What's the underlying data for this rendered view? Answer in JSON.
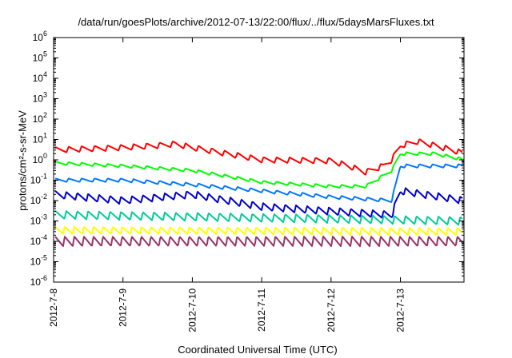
{
  "chart_data": {
    "type": "line",
    "title": "/data/run/goesPlots/archive/2012-07-13/22:00/flux/../flux/5daysMarsFluxes.txt",
    "xlabel": "Coordinated Universal Time (UTC)",
    "ylabel": "protons/cm²-s-sr-MeV",
    "y_scale": "log",
    "ylim": [
      1e-06,
      1000000.0
    ],
    "y_ticks": [
      "10-6",
      "10-5",
      "10-4",
      "10-3",
      "10-2",
      "10-1",
      "100",
      "101",
      "102",
      "103",
      "104",
      "105",
      "106"
    ],
    "xlim": [
      "2012-07-08",
      "2012-07-13T22:00"
    ],
    "x_ticks": [
      "2012-7-8",
      "2012-7-9",
      "2012-7-10",
      "2012-7-11",
      "2012-7-12",
      "2012-7-13"
    ],
    "grid": false,
    "legend": "none",
    "series": [
      {
        "color": "#ff0000",
        "x": [
          "2012-07-08",
          "2012-07-09",
          "2012-07-09T12:00",
          "2012-07-09T18:00",
          "2012-07-10",
          "2012-07-11",
          "2012-07-12",
          "2012-07-12T06:00",
          "2012-07-12T12:00",
          "2012-07-12T18:00",
          "2012-07-12T21:00",
          "2012-07-13",
          "2012-07-13T06:00",
          "2012-07-13T12:00",
          "2012-07-13T18:00",
          "2012-07-13T22:00"
        ],
        "values": [
          3,
          4,
          5,
          6,
          4,
          1,
          0.9,
          0.5,
          0.25,
          0.5,
          1,
          5,
          8,
          5,
          3,
          2
        ]
      },
      {
        "color": "#00ff00",
        "x": [
          "2012-07-08",
          "2012-07-09",
          "2012-07-10",
          "2012-07-11",
          "2012-07-12",
          "2012-07-12T12:00",
          "2012-07-12T21:00",
          "2012-07-13",
          "2012-07-13T12:00",
          "2012-07-13T22:00"
        ],
        "values": [
          0.7,
          0.5,
          0.3,
          0.08,
          0.05,
          0.05,
          0.3,
          2,
          2,
          1
        ]
      },
      {
        "color": "#0077ff",
        "x": [
          "2012-07-08",
          "2012-07-09",
          "2012-07-10",
          "2012-07-11",
          "2012-07-12",
          "2012-07-12T21:00",
          "2012-07-13",
          "2012-07-13T12:00",
          "2012-07-13T22:00"
        ],
        "values": [
          0.1,
          0.1,
          0.06,
          0.03,
          0.015,
          0.01,
          0.5,
          0.5,
          0.5
        ]
      },
      {
        "color": "#0000cc",
        "x": [
          "2012-07-08",
          "2012-07-09",
          "2012-07-10",
          "2012-07-11",
          "2012-07-12",
          "2012-07-12T21:00",
          "2012-07-13",
          "2012-07-13T22:00"
        ],
        "values": [
          0.02,
          0.01,
          0.02,
          0.005,
          0.003,
          0.002,
          0.03,
          0.01
        ]
      },
      {
        "color": "#00cc99",
        "x": [
          "2012-07-08",
          "2012-07-13T22:00"
        ],
        "values": [
          0.002,
          0.001
        ]
      },
      {
        "color": "#ffff00",
        "x": [
          "2012-07-08",
          "2012-07-13T22:00"
        ],
        "values": [
          0.00035,
          0.0003
        ]
      },
      {
        "color": "#993366",
        "x": [
          "2012-07-08",
          "2012-07-13T22:00"
        ],
        "values": [
          0.0001,
          0.0001
        ]
      }
    ]
  }
}
